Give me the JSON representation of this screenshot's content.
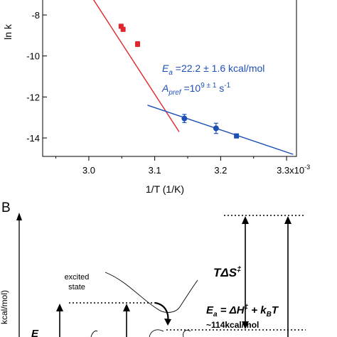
{
  "chart_data": {
    "type": "scatter",
    "xlabel": "1/T (1/K)",
    "ylabel": "ln k",
    "xlim": [
      2.93,
      3.315
    ],
    "ylim": [
      -14.9,
      -7.2
    ],
    "x_ticks": [
      "3.0",
      "3.1",
      "3.2",
      "3.3x10"
    ],
    "x_tick_exponent": "-3",
    "y_ticks": [
      "-8",
      "-10",
      "-12",
      "-14"
    ],
    "grid": false,
    "series": [
      {
        "color": "#e0262c",
        "points": [
          {
            "x": 3.049,
            "y": -8.55,
            "err": 0.1
          },
          {
            "x": 3.052,
            "y": -8.7,
            "err": 0.1
          },
          {
            "x": 3.074,
            "y": -9.42,
            "err": 0.12
          }
        ],
        "fit": {
          "x": [
            3.0,
            3.137
          ],
          "y": [
            -6.9,
            -13.7
          ]
        }
      },
      {
        "color": "#1d4fb5",
        "points": [
          {
            "x": 3.145,
            "y": -13.05,
            "err": 0.2
          },
          {
            "x": 3.193,
            "y": -13.53,
            "err": 0.25
          },
          {
            "x": 3.224,
            "y": -13.9,
            "err": 0.1
          }
        ],
        "fit": {
          "x": [
            3.089,
            3.31
          ],
          "y": [
            -12.4,
            -14.8
          ]
        }
      }
    ],
    "annotations": {
      "ea_label": "E",
      "ea_sub": "a",
      "ea_value": " =22.2 ± 1.6 kcal/mol",
      "apref_label": "A",
      "apref_sub": "pref",
      "apref_mid": " =10",
      "apref_exp": "9 ± 1",
      "apref_unit": " s",
      "apref_unit_exp": "-1"
    }
  },
  "panel_b": {
    "label": "B",
    "y_axis_label": "kcal/mol)",
    "excited_state_line1": "excited",
    "excited_state_line2": "state",
    "tds": "TΔS",
    "tds_sup": "‡",
    "ea_eq_E": "E",
    "ea_eq_sub": "a",
    "ea_eq_mid": " = ΔH",
    "ea_eq_dag": "‡",
    "ea_eq_plus": " + k",
    "ea_eq_ksub": "B",
    "ea_eq_T": "T",
    "ea_approx": "~114kcal/mol",
    "left_partial": "E"
  }
}
